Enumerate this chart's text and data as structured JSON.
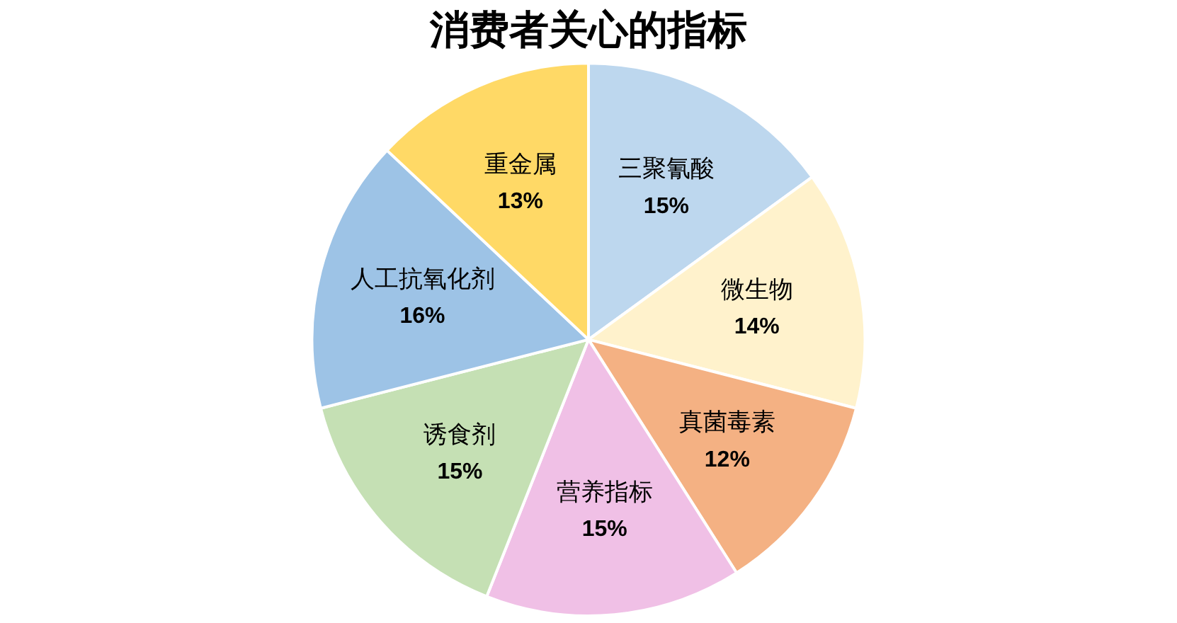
{
  "chart_data": {
    "type": "pie",
    "title": "消费者关心的指标",
    "categories": [
      "三聚氰酸",
      "微生物",
      "真菌毒素",
      "营养指标",
      "诱食剂",
      "人工抗氧化剂",
      "重金属"
    ],
    "values": [
      15,
      14,
      12,
      15,
      15,
      16,
      13
    ],
    "colors": [
      "#bdd7ee",
      "#fff2cc",
      "#f4b183",
      "#f0c0e6",
      "#c5e0b4",
      "#9dc3e6",
      "#ffd966"
    ],
    "value_labels": [
      "15%",
      "14%",
      "12%",
      "15%",
      "15%",
      "16%",
      "13%"
    ],
    "legend": false
  }
}
